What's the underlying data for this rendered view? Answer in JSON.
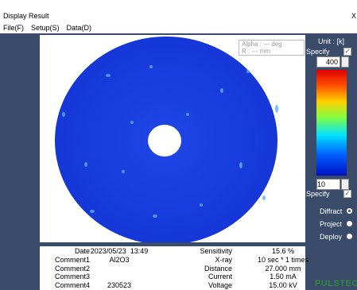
{
  "window": {
    "title": "Display Result",
    "close": "X"
  },
  "menu": [
    "File(F)",
    "Setup(S)",
    "Data(D)"
  ],
  "overlay": {
    "alpha": "Alpha : --- deg",
    "r": "R : --- mm"
  },
  "scale": {
    "unit": "Unit : [k]",
    "specify_top": "Specify",
    "max": "400",
    "min": "10",
    "specify_bottom": "Specify"
  },
  "modes": [
    {
      "label": "Diffract",
      "selected": true
    },
    {
      "label": "Project",
      "selected": false
    },
    {
      "label": "Deploy",
      "selected": false
    }
  ],
  "info": {
    "left": [
      {
        "label": "Date",
        "value": "2023/05/23  13:49"
      },
      {
        "label": "Comment1",
        "value": "Al2O3"
      },
      {
        "label": "Comment2"
      },
      {
        "label": "Comment3"
      },
      {
        "label": "Comment4",
        "value": "230523"
      }
    ],
    "right": [
      {
        "label": "Sensitivity",
        "value": "15.6 %"
      },
      {
        "label": "X-ray",
        "value": "10 sec * 1 times"
      },
      {
        "label": "Distance",
        "value": "27.000 mm"
      },
      {
        "label": "Current",
        "value": "1.50 mA"
      },
      {
        "label": "Voltage",
        "value": "15.00 kV"
      }
    ]
  },
  "logo": "PULSTEC"
}
